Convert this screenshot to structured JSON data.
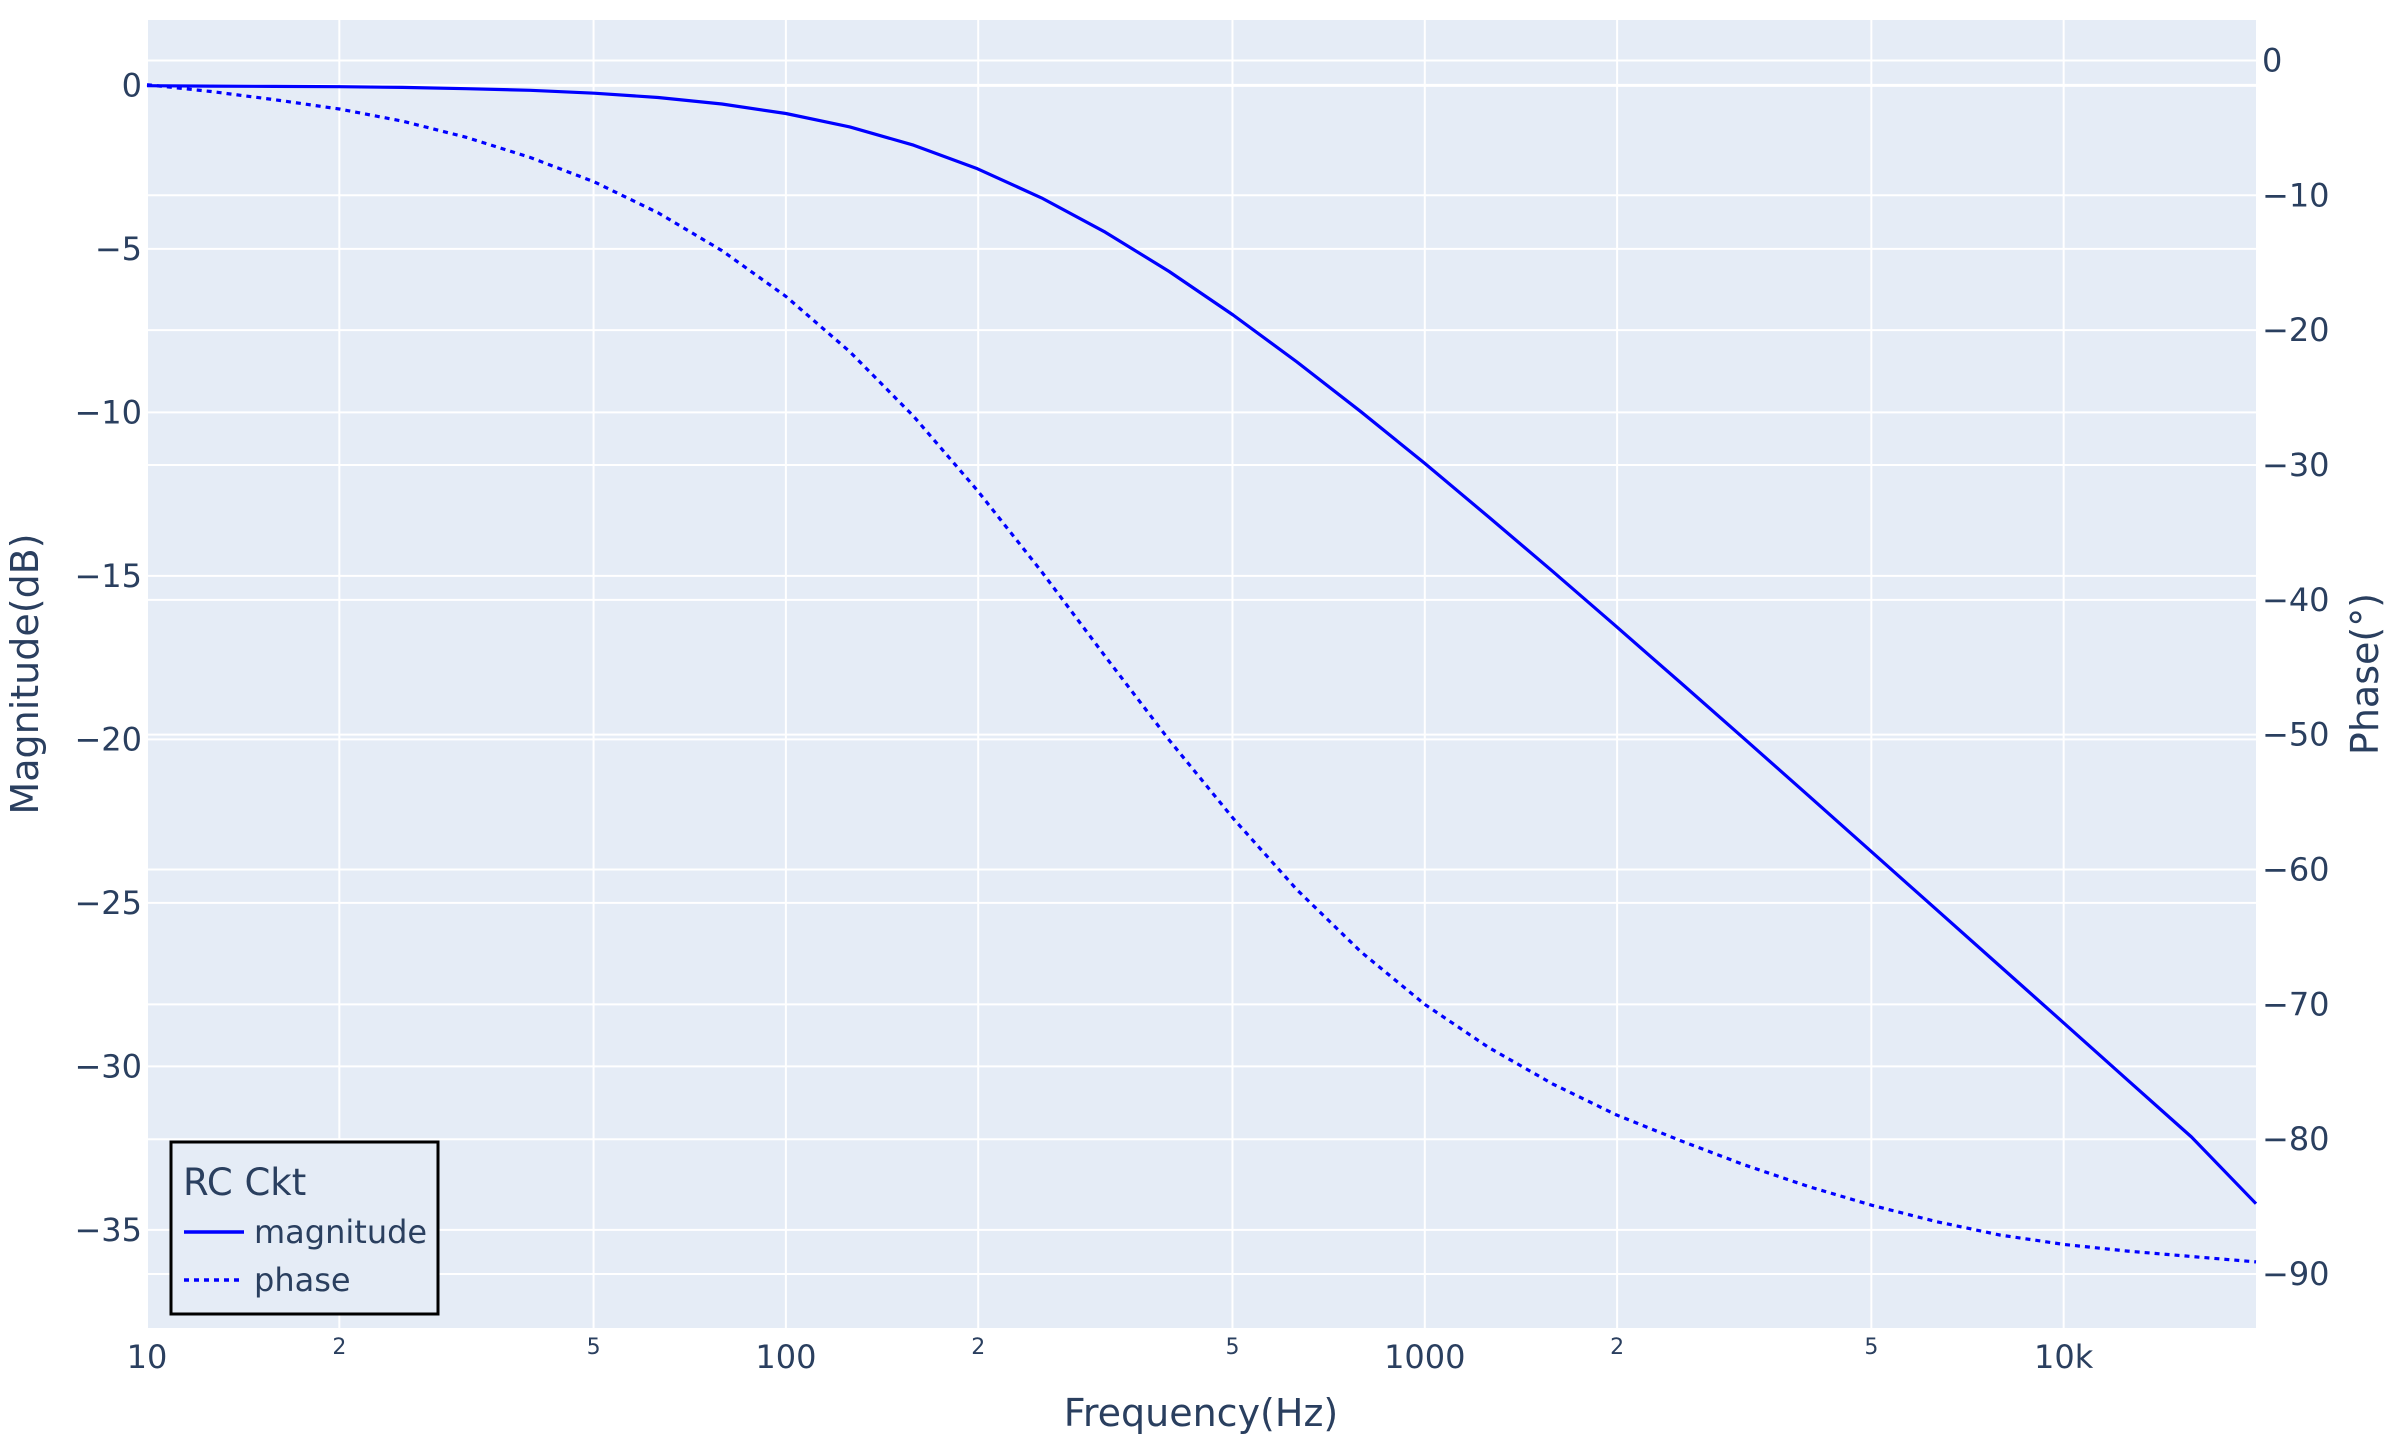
{
  "chart_data": {
    "type": "line",
    "title": "",
    "xlabel": "Frequency(Hz)",
    "ylabel": "Magnitude(dB)",
    "y2label": "Phase(°)",
    "xscale": "log",
    "xlim": [
      10,
      20000
    ],
    "ylim": [
      -38,
      2
    ],
    "y2lim": [
      -94,
      3
    ],
    "grid": true,
    "legend": {
      "title": "RC Ckt",
      "placement": "bottom-left"
    },
    "colors": {
      "plot_bg": "#e5ecf6",
      "grid": "#ffffff",
      "line": "#0000ff",
      "text": "#2a3f5f"
    },
    "x_ticks": [
      {
        "v": 10,
        "label": "10",
        "major": true
      },
      {
        "v": 20,
        "label": "2",
        "major": false
      },
      {
        "v": 50,
        "label": "5",
        "major": false
      },
      {
        "v": 100,
        "label": "100",
        "major": true
      },
      {
        "v": 200,
        "label": "2",
        "major": false
      },
      {
        "v": 500,
        "label": "5",
        "major": false
      },
      {
        "v": 1000,
        "label": "1000",
        "major": true
      },
      {
        "v": 2000,
        "label": "2",
        "major": false
      },
      {
        "v": 5000,
        "label": "5",
        "major": false
      },
      {
        "v": 10000,
        "label": "10k",
        "major": true
      }
    ],
    "y_ticks": [
      0,
      -5,
      -10,
      -15,
      -20,
      -25,
      -30,
      -35
    ],
    "y_tick_labels": [
      "0",
      "−5",
      "−10",
      "−15",
      "−20",
      "−25",
      "−30",
      "−35"
    ],
    "y2_ticks": [
      0,
      -10,
      -20,
      -30,
      -40,
      -50,
      -60,
      -70,
      -80,
      -90
    ],
    "y2_tick_labels": [
      "0",
      "−10",
      "−20",
      "−30",
      "−40",
      "−50",
      "−60",
      "−70",
      "−80",
      "−90"
    ],
    "x": [
      10,
      12.6,
      15.8,
      20,
      25.1,
      31.6,
      39.8,
      50.1,
      63.1,
      79.4,
      100,
      125.9,
      158.5,
      199.5,
      251.2,
      316.2,
      398.1,
      501.2,
      631,
      794.3,
      1000,
      1259,
      1585,
      1995,
      2512,
      3162,
      3981,
      5012,
      6310,
      7943,
      10000,
      12589,
      15849,
      20000
    ],
    "series": [
      {
        "name": "magnitude",
        "axis": "y",
        "dash": "solid",
        "values": [
          -0.01,
          -0.02,
          -0.03,
          -0.04,
          -0.06,
          -0.1,
          -0.15,
          -0.24,
          -0.37,
          -0.57,
          -0.86,
          -1.27,
          -1.83,
          -2.55,
          -3.44,
          -4.49,
          -5.69,
          -7.02,
          -8.46,
          -9.98,
          -11.56,
          -13.2,
          -14.86,
          -16.55,
          -18.26,
          -19.98,
          -21.71,
          -23.45,
          -25.19,
          -26.93,
          -28.67,
          -30.42,
          -32.16,
          -34.2
        ]
      },
      {
        "name": "phase",
        "axis": "y2",
        "dash": "dot",
        "values": [
          -1.8,
          -2.3,
          -2.9,
          -3.6,
          -4.5,
          -5.7,
          -7.2,
          -9.0,
          -11.3,
          -14.1,
          -17.5,
          -21.6,
          -26.4,
          -31.9,
          -37.9,
          -44.2,
          -50.4,
          -56.2,
          -61.5,
          -66.1,
          -70.0,
          -73.2,
          -75.9,
          -78.2,
          -80.1,
          -81.9,
          -83.5,
          -84.9,
          -86.1,
          -87.1,
          -87.8,
          -88.3,
          -88.7,
          -89.1
        ]
      }
    ]
  }
}
